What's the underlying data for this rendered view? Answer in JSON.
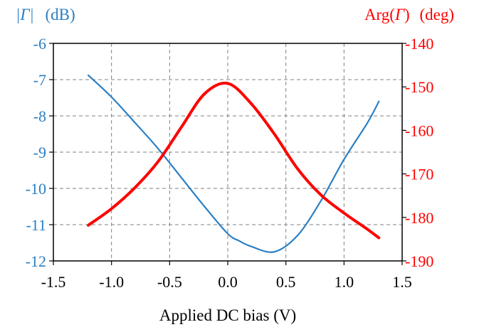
{
  "chart_data": {
    "type": "line",
    "xlabel": "Applied DC bias (V)",
    "xlim": [
      -1.5,
      1.5
    ],
    "x_ticks": [
      "-1.5",
      "-1.0",
      "-0.5",
      "0.0",
      "0.5",
      "1.0",
      "1.5"
    ],
    "left_axis": {
      "label_symbol": "|Γ|",
      "label_unit": "(dB)",
      "ylim": [
        -12,
        -6
      ],
      "ticks": [
        "-6",
        "-7",
        "-8",
        "-9",
        "-10",
        "-11",
        "-12"
      ],
      "color": "#2a7fc4"
    },
    "right_axis": {
      "label_prefix": "Arg(",
      "label_symbol": "Γ",
      "label_suffix": ")",
      "label_unit": "(deg)",
      "ylim": [
        -190,
        -140
      ],
      "ticks": [
        "-140",
        "-150",
        "-160",
        "-170",
        "-180",
        "-190"
      ],
      "color": "#ff0000"
    },
    "grid": true,
    "series": [
      {
        "axis": "left",
        "color": "#2a7fc4",
        "x": [
          -1.2,
          -1.0,
          -0.8,
          -0.6,
          -0.4,
          -0.2,
          0.0,
          0.1,
          0.2,
          0.4,
          0.6,
          0.8,
          1.0,
          1.2,
          1.3
        ],
        "y": [
          -6.88,
          -7.48,
          -8.18,
          -8.9,
          -9.7,
          -10.5,
          -11.25,
          -11.45,
          -11.6,
          -11.75,
          -11.3,
          -10.35,
          -9.2,
          -8.2,
          -7.6
        ]
      },
      {
        "axis": "right",
        "color": "#ff0000",
        "x": [
          -1.2,
          -1.0,
          -0.8,
          -0.6,
          -0.4,
          -0.2,
          0.0,
          0.2,
          0.4,
          0.6,
          0.8,
          1.0,
          1.2,
          1.3
        ],
        "y": [
          -181.8,
          -178.0,
          -173.2,
          -167.2,
          -159.3,
          -151.6,
          -149.2,
          -153.8,
          -160.8,
          -168.8,
          -174.8,
          -179.0,
          -182.7,
          -184.7
        ]
      }
    ]
  }
}
